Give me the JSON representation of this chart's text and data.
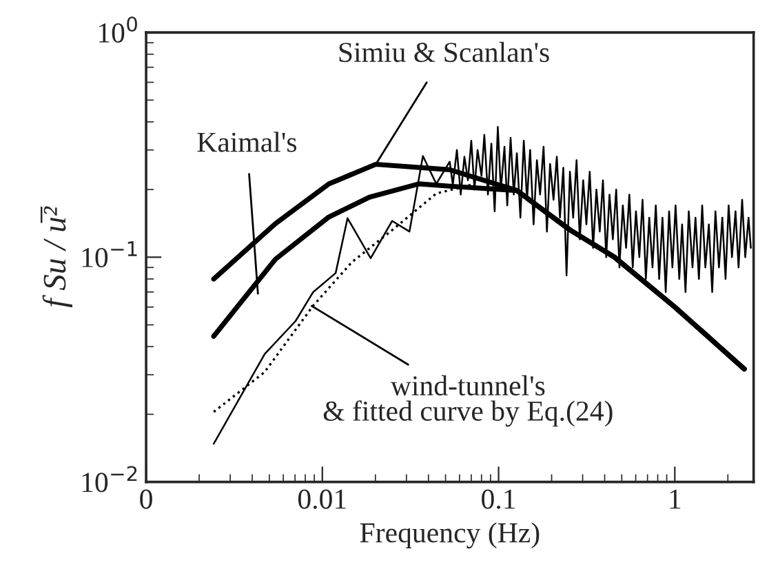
{
  "chart_data": {
    "type": "line",
    "xlabel": "Frequency (Hz)",
    "ylabel": "f Su / u̅²",
    "log": "xy",
    "xlim": [
      0.001,
      2.8
    ],
    "ylim": [
      0.01,
      1
    ],
    "xticks": [
      {
        "value": 0.001,
        "label": "0"
      },
      0.01,
      0.1,
      1
    ],
    "yticks": [
      {
        "value": 0.01,
        "label": "10$^{−2}$"
      },
      {
        "value": 0.1,
        "label": "10$^{−1}$"
      },
      {
        "value": 1,
        "label": "10$^{0}$"
      }
    ],
    "grid": false,
    "legend": false,
    "marker": "none",
    "series": [
      {
        "color": "#000000",
        "line_style": "solid",
        "x": [
          0.00242,
          0.00542,
          0.0109,
          0.0201,
          0.0528,
          0.127,
          0.255,
          0.455,
          1.0,
          2.48
        ],
        "values": [
          0.08,
          0.141,
          0.212,
          0.259,
          0.245,
          0.198,
          0.132,
          0.1,
          0.06,
          0.0318
        ]
      },
      {
        "color": "#000000",
        "line_style": "solid",
        "x": [
          0.00242,
          0.00542,
          0.0109,
          0.0185,
          0.0353,
          0.0528,
          0.127,
          0.255,
          0.455,
          1.0,
          2.48
        ],
        "values": [
          0.0445,
          0.098,
          0.151,
          0.185,
          0.212,
          0.207,
          0.198,
          0.132,
          0.1,
          0.06,
          0.0318
        ]
      },
      {
        "color": "#000000",
        "line_style": "solid",
        "x": [
          0.00242,
          0.00471,
          0.00705,
          0.00885,
          0.0119,
          0.0139,
          0.0188,
          0.0249,
          0.0312,
          0.0372,
          0.0443,
          0.0528,
          0.055,
          0.058,
          0.061,
          0.064,
          0.067,
          0.07,
          0.073,
          0.076,
          0.08,
          0.083,
          0.087,
          0.091,
          0.095,
          0.099,
          0.103,
          0.108,
          0.112,
          0.117,
          0.122,
          0.127,
          0.133,
          0.139,
          0.145,
          0.151,
          0.158,
          0.165,
          0.172,
          0.18,
          0.188,
          0.196,
          0.205,
          0.214,
          0.223,
          0.233,
          0.243,
          0.254,
          0.265,
          0.277,
          0.289,
          0.302,
          0.315,
          0.329,
          0.344,
          0.359,
          0.375,
          0.391,
          0.408,
          0.426,
          0.445,
          0.465,
          0.485,
          0.507,
          0.529,
          0.552,
          0.577,
          0.602,
          0.629,
          0.656,
          0.685,
          0.716,
          0.747,
          0.78,
          0.815,
          0.851,
          0.888,
          0.928,
          0.969,
          1.01,
          1.06,
          1.1,
          1.15,
          1.2,
          1.26,
          1.31,
          1.37,
          1.43,
          1.49,
          1.56,
          1.63,
          1.7,
          1.78,
          1.86,
          1.94,
          2.02,
          2.11,
          2.21,
          2.3,
          2.41,
          2.51,
          2.62,
          2.7
        ],
        "values": [
          0.0148,
          0.0371,
          0.052,
          0.0698,
          0.085,
          0.149,
          0.099,
          0.145,
          0.13,
          0.282,
          0.212,
          0.266,
          0.21,
          0.3,
          0.19,
          0.28,
          0.22,
          0.33,
          0.2,
          0.3,
          0.23,
          0.35,
          0.19,
          0.32,
          0.16,
          0.38,
          0.2,
          0.31,
          0.17,
          0.34,
          0.19,
          0.29,
          0.15,
          0.33,
          0.18,
          0.3,
          0.14,
          0.27,
          0.19,
          0.31,
          0.13,
          0.26,
          0.18,
          0.28,
          0.15,
          0.25,
          0.083,
          0.24,
          0.15,
          0.27,
          0.12,
          0.22,
          0.14,
          0.24,
          0.11,
          0.2,
          0.13,
          0.22,
          0.1,
          0.19,
          0.12,
          0.2,
          0.09,
          0.17,
          0.11,
          0.19,
          0.09,
          0.16,
          0.1,
          0.18,
          0.08,
          0.15,
          0.09,
          0.17,
          0.08,
          0.15,
          0.07,
          0.16,
          0.09,
          0.17,
          0.08,
          0.14,
          0.07,
          0.16,
          0.09,
          0.15,
          0.08,
          0.17,
          0.09,
          0.14,
          0.07,
          0.16,
          0.09,
          0.15,
          0.08,
          0.17,
          0.1,
          0.16,
          0.09,
          0.18,
          0.1,
          0.15,
          0.11
        ]
      },
      {
        "color": "#000000",
        "line_style": "dotted",
        "x": [
          0.00242,
          0.0047,
          0.00885,
          0.0147,
          0.0249,
          0.0443,
          0.07
        ],
        "values": [
          0.0205,
          0.0308,
          0.0607,
          0.095,
          0.132,
          0.192,
          0.21
        ]
      }
    ],
    "annotations": [
      {
        "text": "Simiu & Scanlan's",
        "x": 0.0201,
        "y": 0.259
      },
      {
        "text": "Kaimal's",
        "x": 0.00431,
        "y": 0.0689
      },
      {
        "text": "wind-tunnel's\n& fitted curve by Eq.(24)",
        "x": 0.0087,
        "y": 0.0607
      }
    ]
  }
}
